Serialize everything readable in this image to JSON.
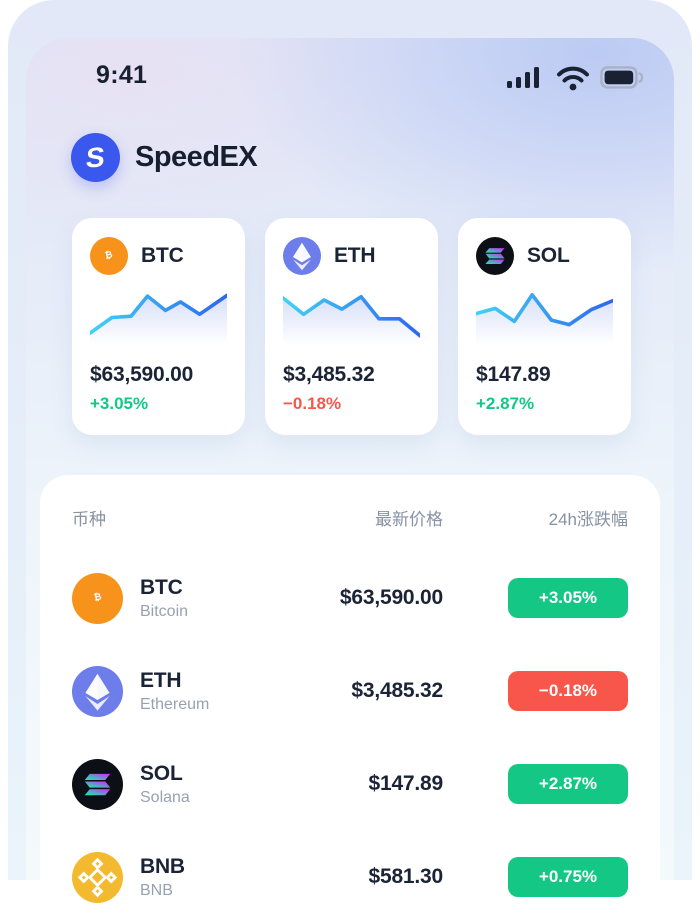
{
  "status_bar": {
    "time": "9:41"
  },
  "header": {
    "app_name": "SpeedEX"
  },
  "colors": {
    "up_green": "#14C784",
    "down_red": "#F8564B",
    "logo_blue": "#3A57EE",
    "btc_orange": "#F7931A",
    "eth_purple": "#6D7DE9",
    "sol_black": "#0C0F16",
    "bnb_yellow": "#F3BA2F",
    "text_dark": "#1B2436",
    "text_gray": "#8792A3"
  },
  "cards": [
    {
      "symbol": "BTC",
      "price": "$63,590.00",
      "change": "+3.05%",
      "direction": "up"
    },
    {
      "symbol": "ETH",
      "price": "$3,485.32",
      "change": "−0.18%",
      "direction": "down"
    },
    {
      "symbol": "SOL",
      "price": "$147.89",
      "change": "+2.87%",
      "direction": "up"
    }
  ],
  "table": {
    "headers": {
      "coin": "币种",
      "price": "最新价格",
      "change": "24h涨跌幅"
    },
    "rows": [
      {
        "symbol": "BTC",
        "name": "Bitcoin",
        "price": "$63,590.00",
        "change": "+3.05%",
        "direction": "up"
      },
      {
        "symbol": "ETH",
        "name": "Ethereum",
        "price": "$3,485.32",
        "change": "−0.18%",
        "direction": "down"
      },
      {
        "symbol": "SOL",
        "name": "Solana",
        "price": "$147.89",
        "change": "+2.87%",
        "direction": "up"
      },
      {
        "symbol": "BNB",
        "name": "BNB",
        "price": "$581.30",
        "change": "+0.75%",
        "direction": "up"
      }
    ]
  },
  "chart_data": [
    {
      "type": "line",
      "symbol": "BTC",
      "axes": false,
      "grid": false,
      "points": [
        [
          0,
          74
        ],
        [
          16,
          50
        ],
        [
          30,
          48
        ],
        [
          42,
          17
        ],
        [
          55,
          39
        ],
        [
          66,
          26
        ],
        [
          80,
          45
        ],
        [
          100,
          16
        ]
      ]
    },
    {
      "type": "line",
      "symbol": "ETH",
      "axes": false,
      "grid": false,
      "points": [
        [
          0,
          20
        ],
        [
          15,
          45
        ],
        [
          30,
          23
        ],
        [
          43,
          37
        ],
        [
          57,
          18
        ],
        [
          70,
          52
        ],
        [
          85,
          52
        ],
        [
          100,
          78
        ]
      ]
    },
    {
      "type": "line",
      "symbol": "SOL",
      "axes": false,
      "grid": false,
      "points": [
        [
          0,
          44
        ],
        [
          14,
          36
        ],
        [
          28,
          56
        ],
        [
          41,
          15
        ],
        [
          55,
          54
        ],
        [
          68,
          61
        ],
        [
          84,
          38
        ],
        [
          100,
          24
        ]
      ]
    }
  ]
}
